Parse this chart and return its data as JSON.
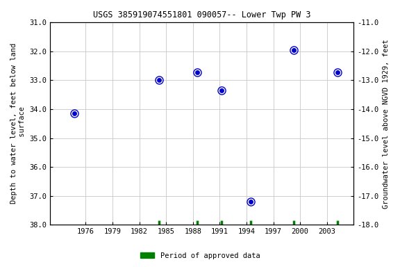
{
  "title": "USGS 385919074551801 090057-- Lower Twp PW 3",
  "ylabel_left": "Depth to water level, feet below land\n surface",
  "ylabel_right": "Groundwater level above NGVD 1929, feet",
  "data_points": [
    {
      "year": 1974.7,
      "depth": 34.15
    },
    {
      "year": 1984.2,
      "depth": 33.0
    },
    {
      "year": 1988.5,
      "depth": 32.72
    },
    {
      "year": 1991.2,
      "depth": 33.35
    },
    {
      "year": 1994.5,
      "depth": 37.2
    },
    {
      "year": 1999.3,
      "depth": 31.95
    },
    {
      "year": 2004.2,
      "depth": 32.72
    }
  ],
  "approved_marks": [
    1984.2,
    1988.5,
    1991.2,
    1994.5,
    1999.3,
    2004.2
  ],
  "ylim_left": [
    38.0,
    31.0
  ],
  "ylim_right": [
    -18.0,
    -11.0
  ],
  "xlim": [
    1972,
    2006
  ],
  "xticks": [
    1976,
    1979,
    1982,
    1985,
    1988,
    1991,
    1994,
    1997,
    2000,
    2003
  ],
  "yticks_left": [
    31.0,
    32.0,
    33.0,
    34.0,
    35.0,
    36.0,
    37.0,
    38.0
  ],
  "yticks_right": [
    -11.0,
    -12.0,
    -13.0,
    -14.0,
    -15.0,
    -16.0,
    -17.0,
    -18.0
  ],
  "point_color": "#0000cc",
  "point_markersize": 4.5,
  "point_markersize_outer": 8,
  "approved_color": "#008000",
  "grid_color": "#c8c8c8",
  "background_color": "#ffffff",
  "title_fontsize": 8.5,
  "label_fontsize": 7.5,
  "tick_fontsize": 7.5,
  "legend_label": "Period of approved data",
  "font_family": "monospace"
}
